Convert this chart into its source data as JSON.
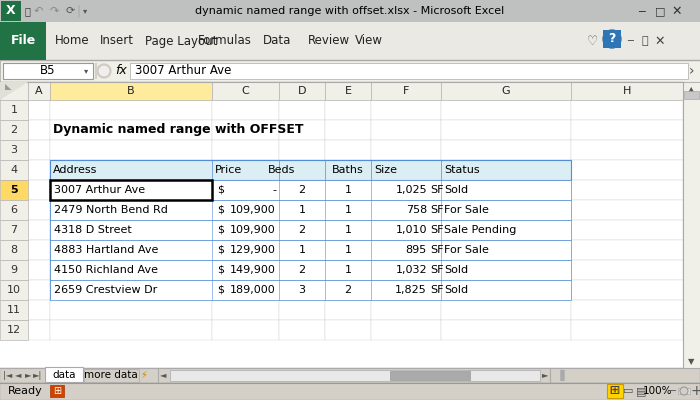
{
  "title_bar": "dynamic named range with offset.xlsx - Microsoft Excel",
  "cell_ref": "B5",
  "formula_bar_text": "3007 Arthur Ave",
  "sheet_title": "Dynamic named range with OFFSET",
  "tabs": [
    "data",
    "more data"
  ],
  "col_headers": [
    "A",
    "B",
    "C",
    "D",
    "E",
    "F",
    "G",
    "H"
  ],
  "row_headers": [
    "1",
    "2",
    "3",
    "4",
    "5",
    "6",
    "7",
    "8",
    "9",
    "10",
    "11",
    "12"
  ],
  "table_headers": [
    "Address",
    "Price",
    "Beds",
    "Baths",
    "Size",
    "Status"
  ],
  "rows": [
    [
      "3007 Arthur Ave",
      "$",
      "-",
      "2",
      "1",
      "1,025",
      "SF",
      "Sold"
    ],
    [
      "2479 North Bend Rd",
      "$",
      "109,900",
      "1",
      "1",
      "758",
      "SF",
      "For Sale"
    ],
    [
      "4318 D Street",
      "$",
      "109,900",
      "2",
      "1",
      "1,010",
      "SF",
      "Sale Pending"
    ],
    [
      "4883 Hartland Ave",
      "$",
      "129,900",
      "1",
      "1",
      "895",
      "SF",
      "For Sale"
    ],
    [
      "4150 Richland Ave",
      "$",
      "149,900",
      "2",
      "1",
      "1,032",
      "SF",
      "Sold"
    ],
    [
      "2659 Crestview Dr",
      "$",
      "189,000",
      "3",
      "2",
      "1,825",
      "SF",
      "Sold"
    ]
  ],
  "ribbon_tabs": [
    "File",
    "Home",
    "Insert",
    "Page Layout",
    "Formulas",
    "Data",
    "Review",
    "View"
  ],
  "bg_color": "#D4D0C8",
  "sheet_bg": "#FFFFFF",
  "header_bg": "#DAEEF3",
  "selected_col_bg": "#FFEB9C",
  "title_bar_bg": "#BFBFBF",
  "ribbon_bg": "#ECE9D8",
  "file_btn_color": "#217346",
  "grid_line_color": "#D0D0D0",
  "table_border_color": "#538DD5"
}
